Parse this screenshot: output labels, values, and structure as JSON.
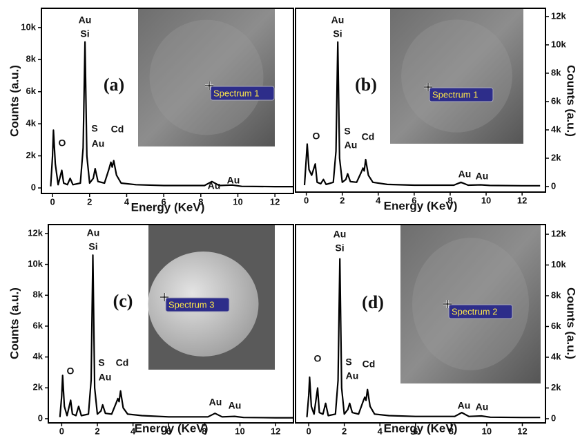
{
  "chart_data": [
    {
      "type": "line",
      "panel_label": "(a)",
      "inset_label": "Spectrum 1",
      "x_label": "Energy (KeV)",
      "y_label": "Counts (a.u.)",
      "y_axis_side": "left",
      "color": "#000000",
      "annotations": [
        "Au",
        "Si",
        "O",
        "S",
        "Au",
        "Cd",
        "Au",
        "Au"
      ],
      "xlim": [
        -0.6,
        13.0
      ],
      "ylim": [
        -345,
        11200
      ],
      "xticks": [
        0,
        2,
        4,
        6,
        8,
        10,
        12
      ],
      "yticks": [
        0,
        {
          "value": 2000,
          "label": "2k"
        },
        {
          "value": 4000,
          "label": "4k"
        },
        {
          "value": 6000,
          "label": "6k"
        },
        {
          "value": 8000,
          "label": "8k"
        },
        {
          "value": 10000,
          "label": "10k"
        }
      ],
      "x": [
        -0.1,
        0.0,
        0.05,
        0.15,
        0.3,
        0.5,
        0.6,
        0.8,
        0.95,
        1.1,
        1.5,
        1.65,
        1.75,
        1.85,
        2.0,
        2.2,
        2.3,
        2.45,
        2.8,
        3.05,
        3.15,
        3.22,
        3.3,
        3.45,
        3.7,
        4.5,
        6,
        8.2,
        8.6,
        9.0,
        9.7,
        10.2,
        12,
        13
      ],
      "values": [
        100,
        2000,
        3600,
        1500,
        200,
        1100,
        300,
        200,
        600,
        200,
        300,
        2500,
        9100,
        2000,
        300,
        600,
        1200,
        400,
        300,
        1200,
        1600,
        1300,
        1700,
        800,
        300,
        200,
        150,
        150,
        400,
        150,
        180,
        100,
        80,
        80
      ]
    },
    {
      "type": "line",
      "panel_label": "(b)",
      "inset_label": "Spectrum 1",
      "x_label": "Energy (KeV)",
      "y_label": "Counts (a.u.)",
      "y_axis_side": "right",
      "color": "#000000",
      "annotations": [
        "Au",
        "Si",
        "O",
        "S",
        "Au",
        "Cd",
        "Au",
        "Au"
      ],
      "xlim": [
        -0.6,
        13.3
      ],
      "ylim": [
        -390,
        12580
      ],
      "xticks": [
        0,
        2,
        4,
        6,
        8,
        10,
        12
      ],
      "yticks": [
        0,
        {
          "value": 2000,
          "label": "2k"
        },
        {
          "value": 4000,
          "label": "4k"
        },
        {
          "value": 6000,
          "label": "6k"
        },
        {
          "value": 8000,
          "label": "8k"
        },
        {
          "value": 10000,
          "label": "10k"
        },
        {
          "value": 12000,
          "label": "12k"
        }
      ],
      "x": [
        -0.1,
        0.0,
        0.05,
        0.15,
        0.3,
        0.5,
        0.6,
        0.8,
        0.95,
        1.1,
        1.5,
        1.65,
        1.75,
        1.85,
        2.0,
        2.2,
        2.3,
        2.45,
        2.8,
        3.05,
        3.15,
        3.22,
        3.3,
        3.45,
        3.7,
        4.5,
        6,
        8.2,
        8.6,
        9.0,
        9.7,
        10.2,
        12,
        13
      ],
      "values": [
        100,
        2000,
        3000,
        1200,
        800,
        1600,
        300,
        200,
        500,
        150,
        300,
        2500,
        10200,
        2000,
        300,
        500,
        900,
        350,
        300,
        1000,
        1300,
        1100,
        1900,
        800,
        300,
        150,
        100,
        100,
        300,
        100,
        120,
        80,
        60,
        60
      ]
    },
    {
      "type": "line",
      "panel_label": "(c)",
      "inset_label": "Spectrum 3",
      "x_label": "Energy (KeV)",
      "y_label": "Counts (a.u.)",
      "y_axis_side": "left",
      "color": "#000000",
      "annotations": [
        "Au",
        "Si",
        "O",
        "S",
        "Au",
        "Cd",
        "Au",
        "Au"
      ],
      "xlim": [
        -0.75,
        13.0
      ],
      "ylim": [
        -270,
        12580
      ],
      "xticks": [
        0,
        2,
        4,
        6,
        8,
        10,
        12
      ],
      "yticks": [
        0,
        {
          "value": 2000,
          "label": "2k"
        },
        {
          "value": 4000,
          "label": "4k"
        },
        {
          "value": 6000,
          "label": "6k"
        },
        {
          "value": 8000,
          "label": "8k"
        },
        {
          "value": 10000,
          "label": "10k"
        },
        {
          "value": 12000,
          "label": "12k"
        }
      ],
      "x": [
        -0.1,
        0.0,
        0.05,
        0.15,
        0.3,
        0.5,
        0.6,
        0.8,
        0.95,
        1.1,
        1.5,
        1.65,
        1.75,
        1.85,
        2.0,
        2.2,
        2.3,
        2.45,
        2.8,
        3.05,
        3.15,
        3.22,
        3.3,
        3.45,
        3.7,
        4.5,
        6,
        8.2,
        8.6,
        9.0,
        9.7,
        10.2,
        12,
        13
      ],
      "values": [
        100,
        1500,
        2800,
        800,
        200,
        1200,
        300,
        200,
        800,
        200,
        300,
        2500,
        10600,
        2000,
        300,
        500,
        900,
        350,
        300,
        1000,
        1300,
        1100,
        1800,
        700,
        300,
        200,
        120,
        120,
        350,
        120,
        150,
        80,
        60,
        60
      ]
    },
    {
      "type": "line",
      "panel_label": "(d)",
      "inset_label": "Spectrum 2",
      "x_label": "Energy (KeV)",
      "y_label": "Counts (a.u.)",
      "y_axis_side": "right",
      "color": "#000000",
      "annotations": [
        "Au",
        "Si",
        "O",
        "S",
        "Au",
        "Cd",
        "Au",
        "Au"
      ],
      "xlim": [
        -0.74,
        13.3
      ],
      "ylim": [
        -270,
        12630
      ],
      "xticks": [
        0,
        2,
        4,
        6,
        8,
        10,
        12
      ],
      "yticks": [
        0,
        {
          "value": 2000,
          "label": "2k"
        },
        {
          "value": 4000,
          "label": "4k"
        },
        {
          "value": 6000,
          "label": "6k"
        },
        {
          "value": 8000,
          "label": "8k"
        },
        {
          "value": 10000,
          "label": "10k"
        },
        {
          "value": 12000,
          "label": "12k"
        }
      ],
      "x": [
        -0.1,
        0.0,
        0.05,
        0.15,
        0.3,
        0.5,
        0.6,
        0.8,
        0.95,
        1.1,
        1.5,
        1.65,
        1.75,
        1.85,
        2.0,
        2.2,
        2.3,
        2.45,
        2.8,
        3.05,
        3.15,
        3.22,
        3.3,
        3.45,
        3.7,
        4.5,
        6,
        8.2,
        8.6,
        9.0,
        9.7,
        10.2,
        12,
        13
      ],
      "values": [
        100,
        1500,
        2700,
        800,
        300,
        2000,
        400,
        300,
        1000,
        200,
        300,
        2500,
        10400,
        2000,
        300,
        600,
        1000,
        400,
        300,
        1100,
        1400,
        1200,
        1900,
        800,
        300,
        200,
        150,
        150,
        400,
        150,
        180,
        100,
        80,
        80
      ]
    }
  ]
}
